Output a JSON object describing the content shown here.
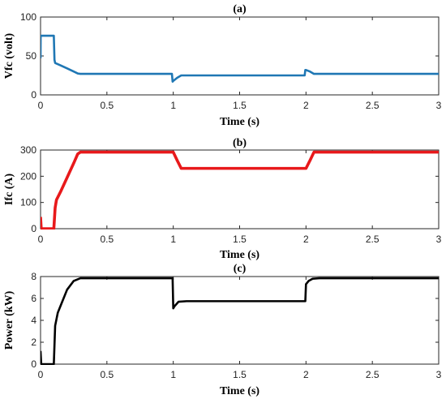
{
  "chart_data": [
    {
      "type": "line",
      "title": "(a)",
      "xlabel": "Time (s)",
      "ylabel": "Vfc (volt)",
      "xlim": [
        0,
        3
      ],
      "ylim": [
        0,
        100
      ],
      "xticks": [
        "0",
        "0.5",
        "1",
        "1.5",
        "2",
        "2.5",
        "3"
      ],
      "yticks": [
        "0",
        "50",
        "100"
      ],
      "grid": false,
      "color": "#1f77b4",
      "series": [
        {
          "x": [
            0,
            0.001,
            0.1,
            0.105,
            0.11,
            0.15,
            0.2,
            0.25,
            0.28,
            0.3,
            0.5,
            0.99,
            0.995,
            1.0,
            1.03,
            1.06,
            1.2,
            1.5,
            1.99,
            1.995,
            2.0,
            2.03,
            2.06,
            2.1,
            2.5,
            3.0
          ],
          "y": [
            47,
            76,
            76,
            45,
            41,
            38,
            34,
            30,
            27.5,
            27,
            27,
            27,
            17,
            18,
            22,
            25,
            25,
            25,
            25,
            32,
            32,
            30,
            27,
            27,
            27,
            27
          ]
        }
      ]
    },
    {
      "type": "line",
      "title": "(b)",
      "xlabel": "Time (s)",
      "ylabel": "Ifc (A)",
      "xlim": [
        0,
        3
      ],
      "ylim": [
        0,
        300
      ],
      "xticks": [
        "0",
        "0.5",
        "1",
        "1.5",
        "2",
        "2.5",
        "3"
      ],
      "yticks": [
        "0",
        "100",
        "200",
        "300"
      ],
      "grid": false,
      "color": "#e8191b",
      "series": [
        {
          "x": [
            0,
            0.005,
            0.01,
            0.1,
            0.11,
            0.12,
            0.15,
            0.2,
            0.25,
            0.28,
            0.3,
            0.5,
            1.0,
            1.03,
            1.06,
            1.2,
            1.5,
            2.0,
            2.03,
            2.06,
            2.5,
            3.0
          ],
          "y": [
            45,
            0,
            0,
            0,
            80,
            110,
            140,
            195,
            250,
            285,
            292,
            292,
            292,
            260,
            230,
            230,
            230,
            230,
            260,
            292,
            292,
            292
          ]
        }
      ]
    },
    {
      "type": "line",
      "title": "(c)",
      "xlabel": "Time (s)",
      "ylabel": "Power (kW)",
      "xlim": [
        0,
        3
      ],
      "ylim": [
        0,
        8
      ],
      "xticks": [
        "0",
        "0.5",
        "1",
        "1.5",
        "2",
        "2.5",
        "3"
      ],
      "yticks": [
        "0",
        "2",
        "4",
        "6",
        "8"
      ],
      "grid": false,
      "color": "#000000",
      "series": [
        {
          "x": [
            0,
            0.005,
            0.01,
            0.1,
            0.11,
            0.13,
            0.16,
            0.2,
            0.25,
            0.3,
            0.5,
            0.995,
            1.0,
            1.01,
            1.04,
            1.1,
            1.5,
            1.995,
            2.0,
            2.02,
            2.05,
            2.1,
            2.5,
            3.0
          ],
          "y": [
            1.2,
            0,
            0,
            0,
            3.5,
            4.7,
            5.6,
            6.8,
            7.6,
            7.85,
            7.85,
            7.85,
            5.1,
            5.3,
            5.7,
            5.75,
            5.75,
            5.75,
            7.3,
            7.6,
            7.8,
            7.85,
            7.85,
            7.85
          ]
        }
      ]
    }
  ]
}
